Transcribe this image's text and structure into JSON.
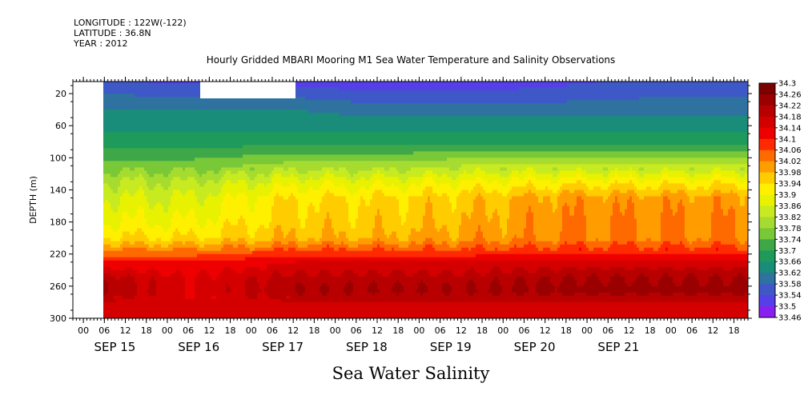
{
  "header": {
    "longitude": "LONGITUDE : 122W(-122)",
    "latitude": "LATITUDE : 36.8N",
    "year": "YEAR : 2012"
  },
  "chart_data": {
    "type": "heatmap",
    "title": "Hourly Gridded MBARI Mooring M1 Sea Water Temperature and Salinity Observations",
    "bottom_title": "Sea Water Salinity",
    "ylabel": "DEPTH (m)",
    "xlabel": "",
    "x_range": [
      "SEP 14 21:00",
      "SEP 21 22:00"
    ],
    "y_range": [
      5,
      300
    ],
    "y_reversed": true,
    "y_ticks": [
      20,
      60,
      100,
      140,
      180,
      220,
      260,
      300
    ],
    "x_hour_ticks": [
      "00",
      "06",
      "12",
      "18",
      "00",
      "06",
      "12",
      "18",
      "00",
      "06",
      "12",
      "18",
      "00",
      "06",
      "12",
      "18",
      "00",
      "06",
      "12",
      "18",
      "00",
      "06",
      "12",
      "18",
      "00",
      "06",
      "12",
      "18",
      "00",
      "06",
      "12",
      "18"
    ],
    "x_day_labels": [
      "SEP 15",
      "SEP 16",
      "SEP 17",
      "SEP 18",
      "SEP 19",
      "SEP 20",
      "SEP 21"
    ],
    "colorbar": {
      "levels": [
        34.3,
        34.26,
        34.22,
        34.18,
        34.14,
        34.1,
        34.06,
        34.02,
        33.98,
        33.94,
        33.9,
        33.86,
        33.82,
        33.78,
        33.74,
        33.7,
        33.66,
        33.62,
        33.58,
        33.54,
        33.5,
        33.46
      ],
      "colors": [
        "#7a0000",
        "#9a0000",
        "#b80000",
        "#d40000",
        "#ee0000",
        "#ff2a00",
        "#ff6a00",
        "#ff9d00",
        "#ffcc00",
        "#fff000",
        "#e8f200",
        "#c8ea20",
        "#a6dc30",
        "#78c838",
        "#3ea848",
        "#1e9a5a",
        "#1a8c7a",
        "#2f72a0",
        "#3f58c8",
        "#5540e8",
        "#8a20f0",
        "#c000ff"
      ]
    },
    "no_data": [
      "SEP 14 21:00 – SEP 15 06:00, all depths",
      "SEP 16 06:00 – SEP 17 06:00, near surface"
    ],
    "profile_depths": [
      10,
      40,
      80,
      110,
      130,
      150,
      180,
      200,
      215,
      230,
      250,
      265,
      280,
      300
    ],
    "profiles": {
      "SEP 15 06:00": [
        33.6,
        33.66,
        33.72,
        33.8,
        33.86,
        33.9,
        33.94,
        33.98,
        34.06,
        34.14,
        34.24,
        34.26,
        34.22,
        34.18
      ],
      "SEP 16 06:00": [
        33.58,
        33.66,
        33.72,
        33.8,
        33.86,
        33.9,
        33.94,
        33.98,
        34.06,
        34.14,
        34.18,
        34.18,
        34.18,
        34.18
      ],
      "SEP 17 12:00": [
        33.58,
        33.66,
        33.72,
        33.84,
        33.92,
        33.98,
        34.0,
        34.02,
        34.1,
        34.18,
        34.24,
        34.26,
        34.22,
        34.2
      ],
      "SEP 18 12:00": [
        33.56,
        33.64,
        33.72,
        33.84,
        33.92,
        33.98,
        34.0,
        34.02,
        34.1,
        34.18,
        34.24,
        34.26,
        34.22,
        34.2
      ],
      "SEP 19 12:00": [
        33.56,
        33.64,
        33.72,
        33.86,
        33.94,
        34.0,
        34.02,
        34.04,
        34.1,
        34.18,
        34.24,
        34.26,
        34.22,
        34.2
      ],
      "SEP 20 18:00": [
        33.58,
        33.64,
        33.72,
        33.86,
        33.96,
        34.04,
        34.06,
        34.06,
        34.12,
        34.2,
        34.26,
        34.28,
        34.22,
        34.2
      ],
      "SEP 21 18:00": [
        33.6,
        33.64,
        33.72,
        33.86,
        33.96,
        34.04,
        34.06,
        34.06,
        34.12,
        34.2,
        34.26,
        34.28,
        34.22,
        34.2
      ]
    }
  }
}
